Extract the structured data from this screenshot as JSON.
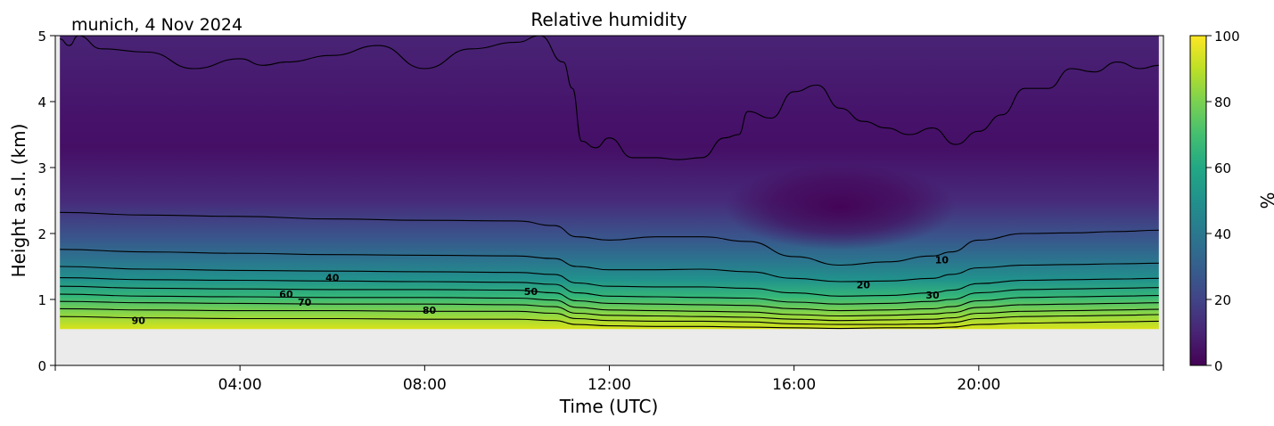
{
  "chart_data": {
    "type": "heatmap",
    "title": "Relative humidity",
    "subtitle": "munich, 4 Nov 2024",
    "xlabel": "Time (UTC)",
    "ylabel": "Height a.s.l. (km)",
    "xlim_hours": [
      0,
      24
    ],
    "ylim": [
      0,
      5
    ],
    "x_ticks": [
      {
        "hour": 4,
        "label": "04:00"
      },
      {
        "hour": 8,
        "label": "08:00"
      },
      {
        "hour": 12,
        "label": "12:00"
      },
      {
        "hour": 16,
        "label": "16:00"
      },
      {
        "hour": 20,
        "label": "20:00"
      }
    ],
    "y_ticks": [
      {
        "value": 0,
        "label": "0"
      },
      {
        "value": 1,
        "label": "1"
      },
      {
        "value": 2,
        "label": "2"
      },
      {
        "value": 3,
        "label": "3"
      },
      {
        "value": 4,
        "label": "4"
      },
      {
        "value": 5,
        "label": "5"
      }
    ],
    "colorbar": {
      "label": "%",
      "range": [
        0,
        100
      ],
      "colormap": "viridis",
      "ticks": [
        {
          "value": 0,
          "label": "0"
        },
        {
          "value": 20,
          "label": "20"
        },
        {
          "value": 40,
          "label": "40"
        },
        {
          "value": 60,
          "label": "60"
        },
        {
          "value": 80,
          "label": "80"
        },
        {
          "value": 100,
          "label": "100"
        }
      ]
    },
    "grid": false,
    "missing_data": {
      "below_height_km": 0.55,
      "color": "#ebebeb"
    },
    "contour_times": [
      0.1,
      2,
      4,
      6,
      8,
      10,
      10.8,
      11.3,
      12,
      13,
      14,
      15,
      16,
      17,
      18,
      19,
      19.4,
      20,
      21,
      22,
      23,
      23.9
    ],
    "contours": [
      {
        "level": 10,
        "heights": [
          2.32,
          2.28,
          2.26,
          2.22,
          2.2,
          2.19,
          2.12,
          1.95,
          1.9,
          1.95,
          1.95,
          1.88,
          1.65,
          1.52,
          1.57,
          1.66,
          1.72,
          1.9,
          2.0,
          2.01,
          2.03,
          2.05
        ],
        "label_hour": 19.2,
        "label_height": 1.6,
        "label_text": "10"
      },
      {
        "level": 20,
        "heights": [
          1.76,
          1.72,
          1.7,
          1.68,
          1.67,
          1.66,
          1.62,
          1.5,
          1.45,
          1.45,
          1.46,
          1.42,
          1.32,
          1.27,
          1.28,
          1.32,
          1.38,
          1.48,
          1.52,
          1.53,
          1.54,
          1.55
        ],
        "label_hour": 17.5,
        "label_height": 1.22,
        "label_text": "20"
      },
      {
        "level": 30,
        "heights": [
          1.5,
          1.46,
          1.44,
          1.43,
          1.42,
          1.41,
          1.38,
          1.25,
          1.2,
          1.19,
          1.19,
          1.17,
          1.1,
          1.05,
          1.06,
          1.1,
          1.14,
          1.24,
          1.29,
          1.3,
          1.31,
          1.32
        ],
        "label_hour": 19.0,
        "label_height": 1.07,
        "label_text": "30"
      },
      {
        "level": 40,
        "heights": [
          1.33,
          1.3,
          1.29,
          1.28,
          1.27,
          1.26,
          1.23,
          1.1,
          1.05,
          1.04,
          1.03,
          1.02,
          0.96,
          0.93,
          0.94,
          0.97,
          1.0,
          1.1,
          1.15,
          1.16,
          1.17,
          1.18
        ],
        "label_hour": 6.0,
        "label_height": 1.33,
        "label_text": "40"
      },
      {
        "level": 50,
        "heights": [
          1.2,
          1.17,
          1.16,
          1.15,
          1.15,
          1.14,
          1.1,
          0.98,
          0.94,
          0.93,
          0.92,
          0.91,
          0.86,
          0.83,
          0.84,
          0.86,
          0.89,
          0.98,
          1.03,
          1.04,
          1.05,
          1.06
        ],
        "label_hour": 10.3,
        "label_height": 1.12,
        "label_text": "50"
      },
      {
        "level": 60,
        "heights": [
          1.08,
          1.05,
          1.04,
          1.03,
          1.03,
          1.02,
          0.99,
          0.88,
          0.84,
          0.83,
          0.82,
          0.81,
          0.77,
          0.75,
          0.76,
          0.78,
          0.8,
          0.88,
          0.92,
          0.93,
          0.94,
          0.95
        ],
        "label_hour": 5.0,
        "label_height": 1.08,
        "label_text": "60"
      },
      {
        "level": 70,
        "heights": [
          0.97,
          0.95,
          0.94,
          0.93,
          0.93,
          0.92,
          0.89,
          0.79,
          0.76,
          0.75,
          0.74,
          0.73,
          0.7,
          0.68,
          0.69,
          0.7,
          0.72,
          0.79,
          0.82,
          0.83,
          0.84,
          0.85
        ],
        "label_hour": 5.4,
        "label_height": 0.96,
        "label_text": "70"
      },
      {
        "level": 80,
        "heights": [
          0.86,
          0.84,
          0.83,
          0.83,
          0.82,
          0.82,
          0.79,
          0.71,
          0.68,
          0.67,
          0.67,
          0.66,
          0.63,
          0.62,
          0.62,
          0.63,
          0.65,
          0.71,
          0.74,
          0.75,
          0.76,
          0.77
        ],
        "label_hour": 8.1,
        "label_height": 0.84,
        "label_text": "80"
      },
      {
        "level": 90,
        "heights": [
          0.74,
          0.72,
          0.71,
          0.71,
          0.7,
          0.7,
          0.68,
          0.62,
          0.6,
          0.59,
          0.59,
          0.58,
          0.57,
          0.56,
          0.57,
          0.57,
          0.58,
          0.62,
          0.64,
          0.65,
          0.66,
          0.67
        ],
        "label_hour": 1.8,
        "label_height": 0.68,
        "label_text": "90"
      }
    ],
    "upper_contour": {
      "level": 10,
      "hours": [
        0.1,
        0.3,
        0.5,
        1,
        2,
        3,
        4,
        4.5,
        5,
        6,
        7,
        8,
        9,
        10,
        10.5,
        11,
        11.2,
        11.4,
        11.7,
        12,
        12.5,
        13,
        13.5,
        14,
        14.5,
        14.8,
        15,
        15.5,
        16,
        16.5,
        17,
        17.5,
        18,
        18.5,
        19,
        19.5,
        20,
        20.5,
        21,
        21.5,
        22,
        22.5,
        23,
        23.5,
        23.9
      ],
      "heights": [
        4.95,
        4.85,
        5.0,
        4.8,
        4.75,
        4.5,
        4.65,
        4.55,
        4.6,
        4.7,
        4.85,
        4.5,
        4.8,
        4.9,
        5.0,
        4.6,
        4.2,
        3.4,
        3.3,
        3.45,
        3.15,
        3.15,
        3.12,
        3.15,
        3.45,
        3.5,
        3.85,
        3.75,
        4.15,
        4.25,
        3.9,
        3.7,
        3.6,
        3.5,
        3.6,
        3.35,
        3.55,
        3.8,
        4.2,
        4.2,
        4.5,
        4.45,
        4.6,
        4.5,
        4.55
      ]
    },
    "annotations": [
      "10",
      "20",
      "30",
      "40",
      "50",
      "60",
      "70",
      "80",
      "90"
    ]
  }
}
